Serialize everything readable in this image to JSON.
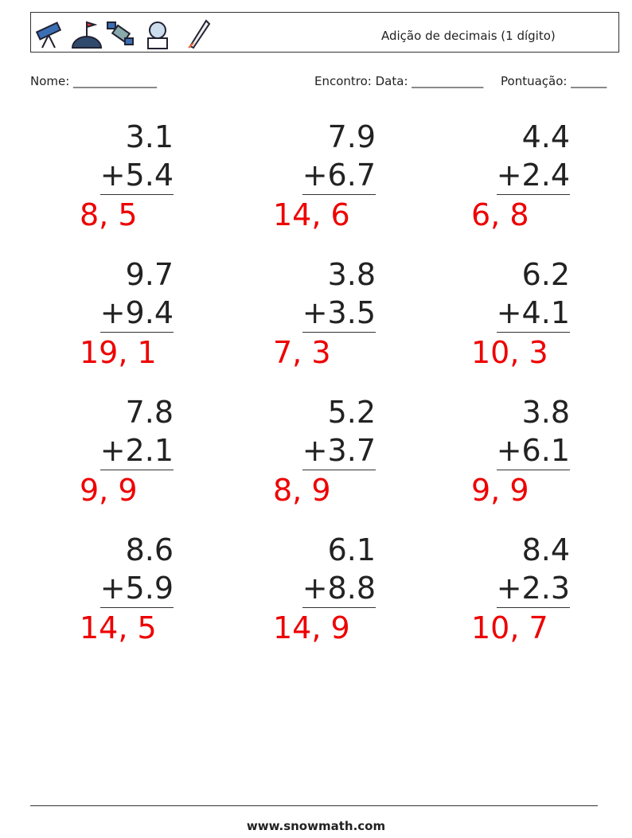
{
  "header": {
    "title": "Adição de decimais (1 dígito)"
  },
  "fields": {
    "name": "Nome: ______________",
    "meeting": "Encontro: Data: ____________",
    "score": "Pontuação: ______"
  },
  "problems": [
    {
      "top": "3.1",
      "bottom": "+5.4",
      "answer": "8, 5"
    },
    {
      "top": "7.9",
      "bottom": "+6.7",
      "answer": "14, 6"
    },
    {
      "top": "4.4",
      "bottom": "+2.4",
      "answer": "6, 8"
    },
    {
      "top": "9.7",
      "bottom": "+9.4",
      "answer": "19, 1"
    },
    {
      "top": "3.8",
      "bottom": "+3.5",
      "answer": "7, 3"
    },
    {
      "top": "6.2",
      "bottom": "+4.1",
      "answer": "10, 3"
    },
    {
      "top": "7.8",
      "bottom": "+2.1",
      "answer": "9, 9"
    },
    {
      "top": "5.2",
      "bottom": "+3.7",
      "answer": "8, 9"
    },
    {
      "top": "3.8",
      "bottom": "+6.1",
      "answer": "9, 9"
    },
    {
      "top": "8.6",
      "bottom": "+5.9",
      "answer": "14, 5"
    },
    {
      "top": "6.1",
      "bottom": "+8.8",
      "answer": "14, 9"
    },
    {
      "top": "8.4",
      "bottom": "+2.3",
      "answer": "10, 7"
    }
  ],
  "footer": {
    "site": "www.snowmath.com"
  }
}
